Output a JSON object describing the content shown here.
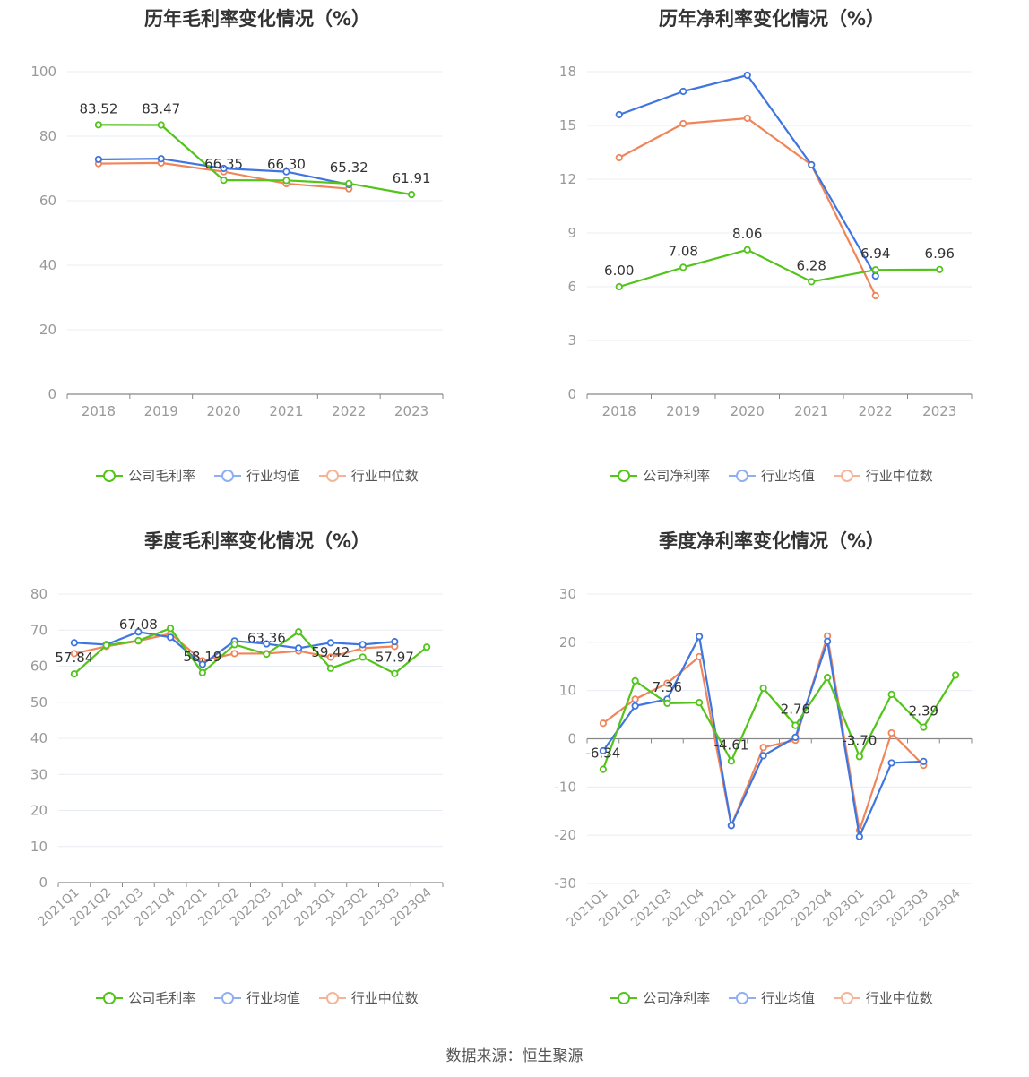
{
  "colors": {
    "company": "#52c41a",
    "avg": "#3f75e0",
    "median": "#f0855a",
    "grid": "#e8ecf4",
    "axis": "#999999"
  },
  "source_text": "数据来源：恒生聚源",
  "charts": [
    {
      "title": "历年毛利率变化情况（%）",
      "legend": [
        "公司毛利率",
        "行业均值",
        "行业中位数"
      ],
      "chart_data": {
        "type": "line",
        "categories": [
          "2018",
          "2019",
          "2020",
          "2021",
          "2022",
          "2023"
        ],
        "yticks": [
          0,
          20,
          40,
          60,
          80,
          100
        ],
        "ylim": [
          0,
          100
        ],
        "series": [
          {
            "name": "公司毛利率",
            "values": [
              83.52,
              83.47,
              66.35,
              66.3,
              65.32,
              61.91
            ]
          },
          {
            "name": "行业均值",
            "values": [
              72.8,
              73.0,
              70.0,
              69.0,
              65.0,
              null
            ]
          },
          {
            "name": "行业中位数",
            "values": [
              71.5,
              71.7,
              69.0,
              65.3,
              63.7,
              null
            ]
          }
        ],
        "labels": [
          "83.52",
          "83.47",
          "66.35",
          "66.30",
          "65.32",
          "61.91"
        ]
      }
    },
    {
      "title": "历年净利率变化情况（%）",
      "legend": [
        "公司净利率",
        "行业均值",
        "行业中位数"
      ],
      "chart_data": {
        "type": "line",
        "categories": [
          "2018",
          "2019",
          "2020",
          "2021",
          "2022",
          "2023"
        ],
        "yticks": [
          0,
          3,
          6,
          9,
          12,
          15,
          18
        ],
        "ylim": [
          0,
          18
        ],
        "series": [
          {
            "name": "公司净利率",
            "values": [
              6.0,
              7.08,
              8.06,
              6.28,
              6.94,
              6.96
            ]
          },
          {
            "name": "行业均值",
            "values": [
              15.6,
              16.9,
              17.8,
              12.8,
              6.6,
              null
            ]
          },
          {
            "name": "行业中位数",
            "values": [
              13.2,
              15.1,
              15.4,
              12.8,
              5.5,
              null
            ]
          }
        ],
        "labels": [
          "6.00",
          "7.08",
          "8.06",
          "6.28",
          "6.94",
          "6.96"
        ]
      }
    },
    {
      "title": "季度毛利率变化情况（%）",
      "legend": [
        "公司毛利率",
        "行业均值",
        "行业中位数"
      ],
      "chart_data": {
        "type": "line",
        "categories": [
          "2021Q1",
          "2021Q2",
          "2021Q3",
          "2021Q4",
          "2022Q1",
          "2022Q2",
          "2022Q3",
          "2022Q4",
          "2023Q1",
          "2023Q2",
          "2023Q3",
          "2023Q4"
        ],
        "yticks": [
          0,
          10,
          20,
          30,
          40,
          50,
          60,
          70,
          80
        ],
        "ylim": [
          0,
          80
        ],
        "series": [
          {
            "name": "公司毛利率",
            "values": [
              57.84,
              65.8,
              67.08,
              70.5,
              58.19,
              66.0,
              63.36,
              69.5,
              59.42,
              62.5,
              57.97,
              65.3
            ]
          },
          {
            "name": "行业均值",
            "values": [
              66.5,
              66.0,
              69.5,
              68.0,
              60.5,
              67.0,
              66.2,
              65.0,
              66.5,
              66.0,
              66.8,
              null
            ]
          },
          {
            "name": "行业中位数",
            "values": [
              63.5,
              65.5,
              67.0,
              69.0,
              61.5,
              63.5,
              63.5,
              64.2,
              62.5,
              65.0,
              65.5,
              null
            ]
          }
        ],
        "labels": [
          "57.84",
          "",
          "67.08",
          "",
          "58.19",
          "",
          "63.36",
          "",
          "59.42",
          "",
          "57.97",
          ""
        ]
      }
    },
    {
      "title": "季度净利率变化情况（%）",
      "legend": [
        "公司净利率",
        "行业均值",
        "行业中位数"
      ],
      "chart_data": {
        "type": "line",
        "categories": [
          "2021Q1",
          "2021Q2",
          "2021Q3",
          "2021Q4",
          "2022Q1",
          "2022Q2",
          "2022Q3",
          "2022Q4",
          "2023Q1",
          "2023Q2",
          "2023Q3",
          "2023Q4"
        ],
        "yticks": [
          -30,
          -20,
          -10,
          0,
          10,
          20,
          30
        ],
        "ylim": [
          -30,
          30
        ],
        "series": [
          {
            "name": "公司净利率",
            "values": [
              -6.34,
              12.0,
              7.36,
              7.5,
              -4.61,
              10.5,
              2.76,
              12.7,
              -3.7,
              9.2,
              2.39,
              13.2
            ]
          },
          {
            "name": "行业均值",
            "values": [
              -2.5,
              6.8,
              8.2,
              21.2,
              -18.0,
              -3.5,
              0.3,
              20.2,
              -20.3,
              -5.0,
              -4.7,
              null
            ]
          },
          {
            "name": "行业中位数",
            "values": [
              3.2,
              8.2,
              11.5,
              17.0,
              -18.0,
              -1.8,
              -0.3,
              21.3,
              -19.0,
              1.2,
              -5.5,
              null
            ]
          }
        ],
        "labels": [
          "-6.34",
          "",
          "7.36",
          "",
          "-4.61",
          "",
          "2.76",
          "",
          "-3.70",
          "",
          "2.39",
          ""
        ]
      }
    }
  ]
}
